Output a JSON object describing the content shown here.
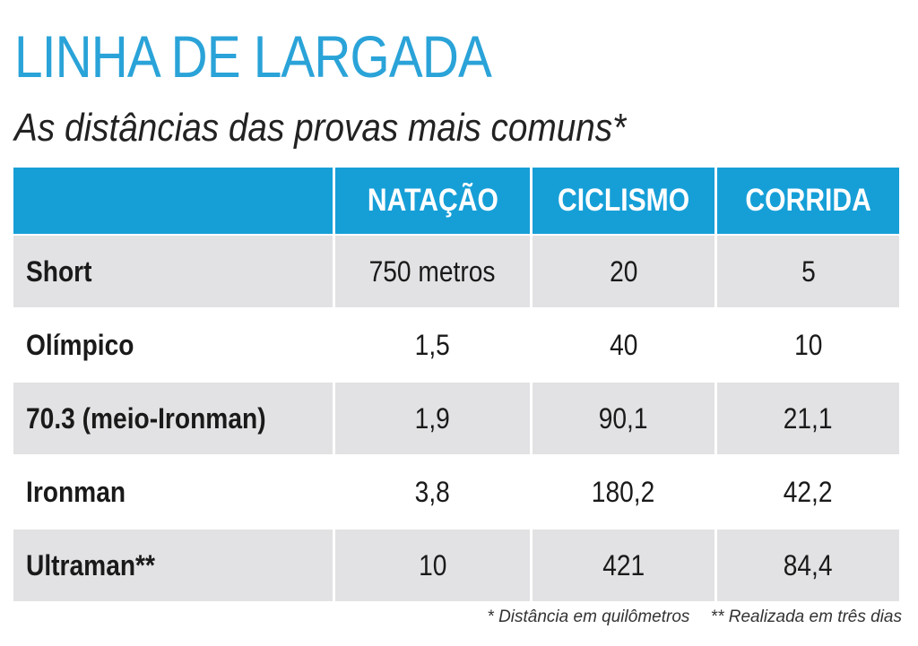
{
  "title": "LINHA DE LARGADA",
  "subtitle": "As distâncias das provas mais comuns*",
  "colors": {
    "accent": "#169fd7",
    "title": "#2aa3d8",
    "row_shade": "#e2e2e4"
  },
  "chart_data": {
    "type": "table",
    "columns": [
      "",
      "NATAÇÃO",
      "CICLISMO",
      "CORRIDA"
    ],
    "rows": [
      {
        "label": "Short",
        "values": [
          "750 metros",
          "20",
          "5"
        ]
      },
      {
        "label": "Olímpico",
        "values": [
          "1,5",
          "40",
          "10"
        ]
      },
      {
        "label": "70.3 (meio-Ironman)",
        "values": [
          "1,9",
          "90,1",
          "21,1"
        ]
      },
      {
        "label": "Ironman",
        "values": [
          "3,8",
          "180,2",
          "42,2"
        ]
      },
      {
        "label": "Ultraman**",
        "values": [
          "10",
          "421",
          "84,4"
        ]
      }
    ]
  },
  "footnotes": [
    "* Distância em quilômetros",
    "** Realizada em três dias"
  ]
}
